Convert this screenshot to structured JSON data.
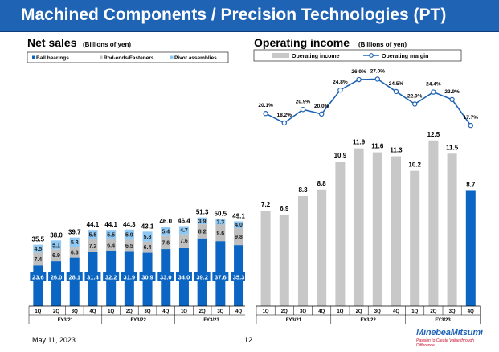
{
  "page": {
    "title": "Machined Components / Precision Technologies (PT)",
    "date": "May 11, 2023",
    "page_number": "12",
    "logo_name": "MinebeaMitsumi",
    "logo_tagline": "Passion to Create Value through Difference"
  },
  "colors": {
    "title_bar": "#1f63b5",
    "ball_bearings": "#0a66c2",
    "rod_ends": "#bfbfbf",
    "pivot": "#8fc8f2",
    "operating_income": "#c8c8c8",
    "operating_income_highlight": "#0a66c2",
    "operating_margin": "#1f63b5"
  },
  "chart_data": [
    {
      "type": "bar",
      "stacked": true,
      "title": "Net sales",
      "subtitle": "(Billions of yen)",
      "categories": [
        "1Q",
        "2Q",
        "3Q",
        "4Q",
        "1Q",
        "2Q",
        "3Q",
        "4Q",
        "1Q",
        "2Q",
        "3Q",
        "4Q"
      ],
      "groups": [
        "FY3/21",
        "FY3/22",
        "FY3/23"
      ],
      "legend": [
        "Ball bearings",
        "Rod-ends/Fasteners",
        "Pivot assemblies"
      ],
      "series": [
        {
          "name": "Ball bearings",
          "values": [
            23.6,
            26.0,
            28.1,
            31.4,
            32.2,
            31.9,
            30.9,
            33.0,
            34.0,
            39.2,
            37.6,
            35.3
          ]
        },
        {
          "name": "Rod-ends/Fasteners",
          "values": [
            7.4,
            6.9,
            6.3,
            7.2,
            6.4,
            6.5,
            6.4,
            7.6,
            7.6,
            8.2,
            9.6,
            9.8
          ]
        },
        {
          "name": "Pivot assemblies",
          "values": [
            4.5,
            5.1,
            5.3,
            5.5,
            5.5,
            5.9,
            5.8,
            5.4,
            4.7,
            3.9,
            3.3,
            4.0
          ]
        }
      ],
      "totals": [
        35.5,
        38.0,
        39.7,
        44.1,
        44.1,
        44.3,
        43.1,
        46.0,
        46.4,
        51.3,
        50.5,
        49.1
      ],
      "ylim": [
        0,
        60
      ]
    },
    {
      "type": "bar+line",
      "title": "Operating income",
      "subtitle": "(Billions of yen)",
      "categories": [
        "1Q",
        "2Q",
        "3Q",
        "4Q",
        "1Q",
        "2Q",
        "3Q",
        "4Q",
        "1Q",
        "2Q",
        "3Q",
        "4Q"
      ],
      "groups": [
        "FY3/21",
        "FY3/22",
        "FY3/23"
      ],
      "legend": [
        "Operating income",
        "Operating margin"
      ],
      "series": [
        {
          "name": "Operating income",
          "values": [
            7.2,
            6.9,
            8.3,
            8.8,
            10.9,
            11.9,
            11.6,
            11.3,
            10.2,
            12.5,
            11.5,
            8.7
          ]
        },
        {
          "name": "Operating margin",
          "values": [
            20.1,
            18.2,
            20.9,
            20.0,
            24.8,
            26.9,
            27.0,
            24.5,
            22.0,
            24.4,
            22.9,
            17.7
          ],
          "labels": [
            "20.1%",
            "18.2%",
            "20.9%",
            "20.0%",
            "24.8%",
            "26.9%",
            "27.0%",
            "24.5%",
            "22.0%",
            "24.4%",
            "22.9%",
            "17.7%"
          ]
        }
      ],
      "highlight_index": 11,
      "ylim": [
        0,
        14
      ],
      "margin_range": [
        15,
        28
      ]
    }
  ]
}
